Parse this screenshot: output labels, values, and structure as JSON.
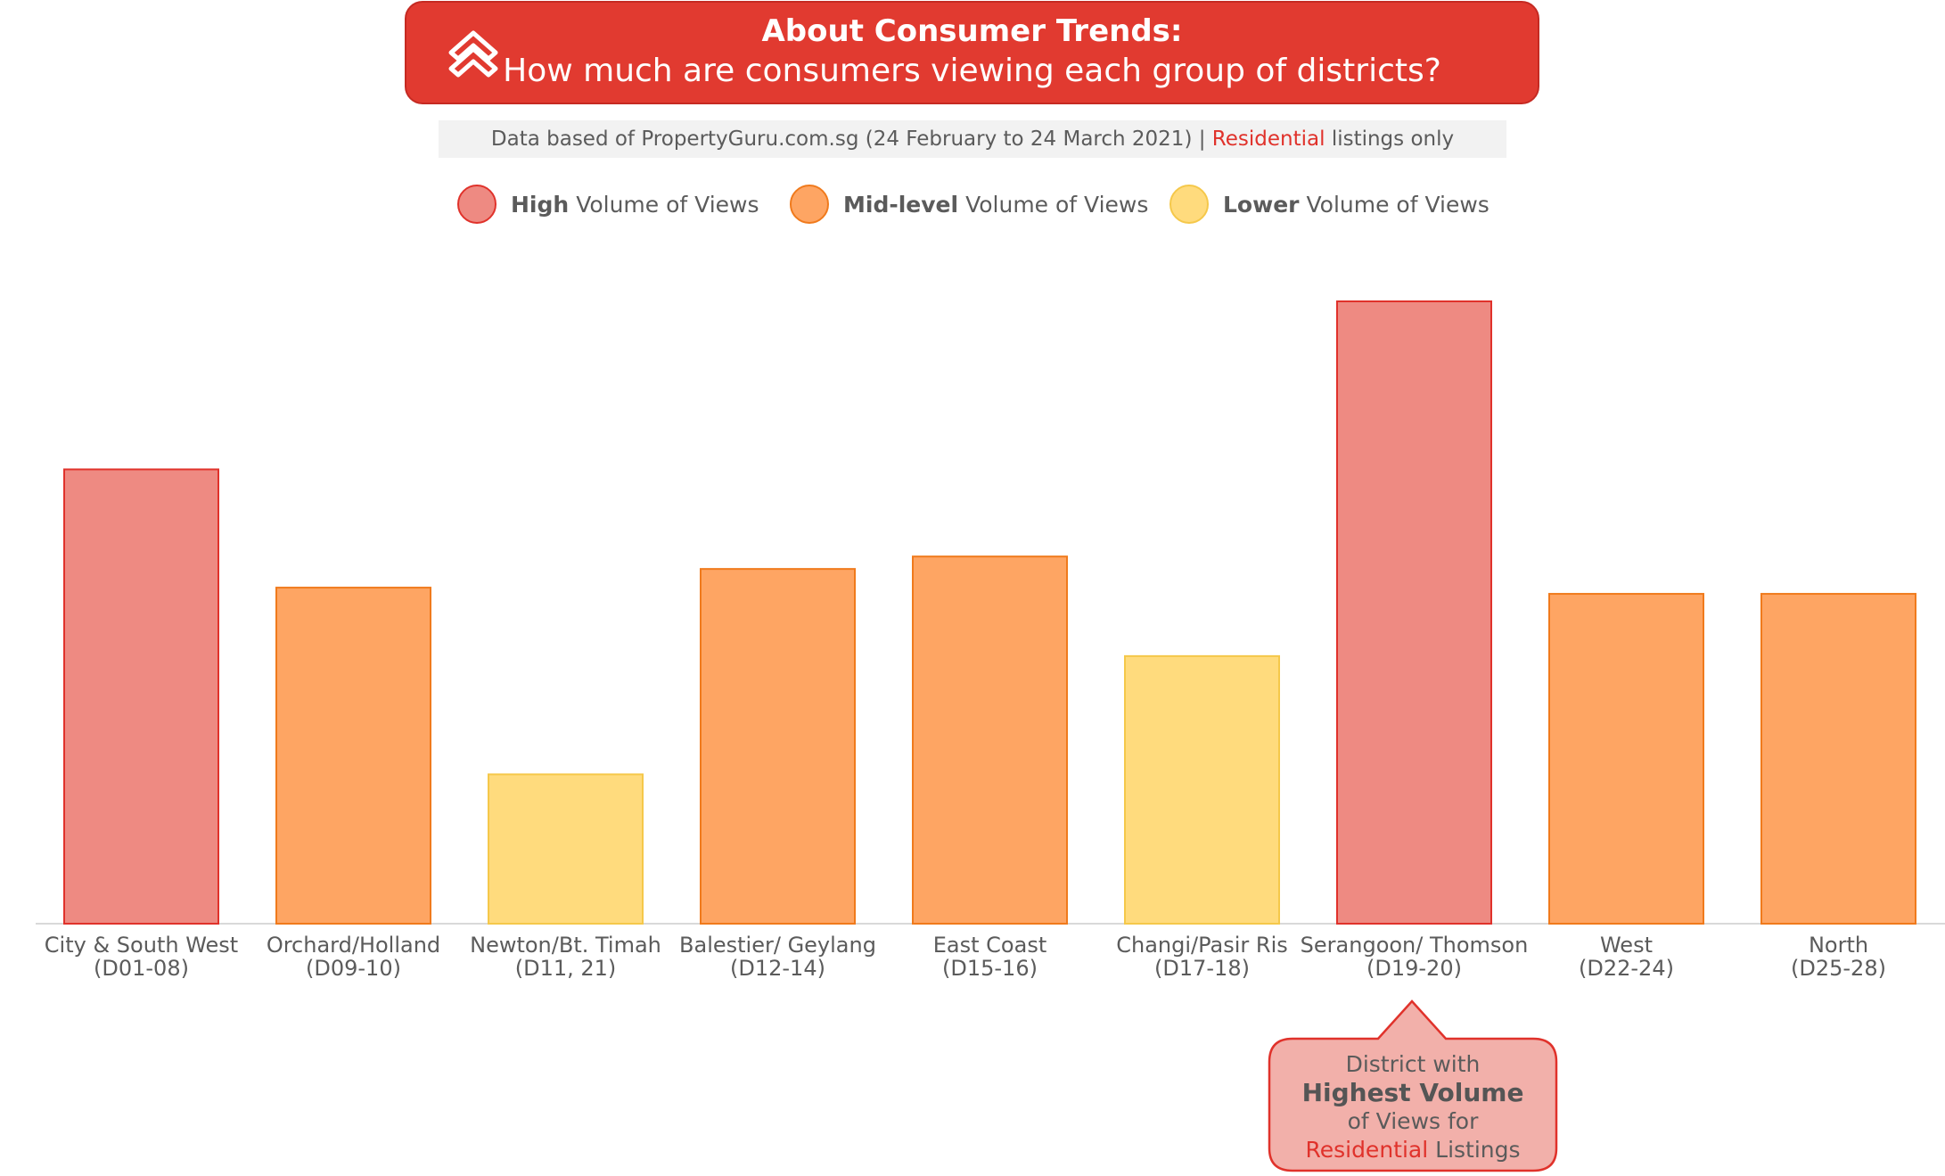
{
  "header": {
    "title": "About Consumer Trends:",
    "subtitle": "How much are consumers viewing each group of districts?",
    "logo_icon": "propertyguru-chevrons-icon"
  },
  "source": {
    "prefix": "Data based of PropertyGuru.com.sg (24 February to 24 March 2021) |",
    "highlight": "Residential",
    "suffix": "listings only"
  },
  "legend": [
    {
      "bold": "High",
      "text": "Volume of Views",
      "fill": "#ee8a82",
      "stroke": "#e0322b"
    },
    {
      "bold": "Mid-level",
      "text": "Volume of Views",
      "fill": "#fea563",
      "stroke": "#f07a1c"
    },
    {
      "bold": "Lower",
      "text": "Volume of Views",
      "fill": "#ffdb7d",
      "stroke": "#f5c84a"
    }
  ],
  "chart_data": {
    "type": "bar",
    "title": "How much are consumers viewing each group of districts?",
    "categories": [
      [
        "City & South West",
        "(D01-08)"
      ],
      [
        "Orchard/Holland",
        "(D09-10)"
      ],
      [
        "Newton/Bt. Timah",
        "(D11, 21)"
      ],
      [
        "Balestier/ Geylang",
        "(D12-14)"
      ],
      [
        "East Coast",
        "(D15-16)"
      ],
      [
        "Changi/Pasir Ris",
        "(D17-18)"
      ],
      [
        "Serangoon/ Thomson",
        "(D19-20)"
      ],
      [
        "West",
        "(D22-24)"
      ],
      [
        "North",
        "(D25-28)"
      ]
    ],
    "values": [
      73,
      54,
      24,
      57,
      59,
      43,
      100,
      53,
      53
    ],
    "levels": [
      "High",
      "Mid-level",
      "Lower",
      "Mid-level",
      "Mid-level",
      "Lower",
      "High",
      "Mid-level",
      "Mid-level"
    ],
    "ylim": [
      0,
      100
    ],
    "y_axis_shown": false,
    "grid": false,
    "legend_position": "top"
  },
  "callout": {
    "line1": "District with",
    "line2": "Highest Volume",
    "line3": "of Views for",
    "line4_red": "Residential",
    "line4_rest": "Listings",
    "fill": "#f2b0aa",
    "stroke": "#e0322b"
  }
}
